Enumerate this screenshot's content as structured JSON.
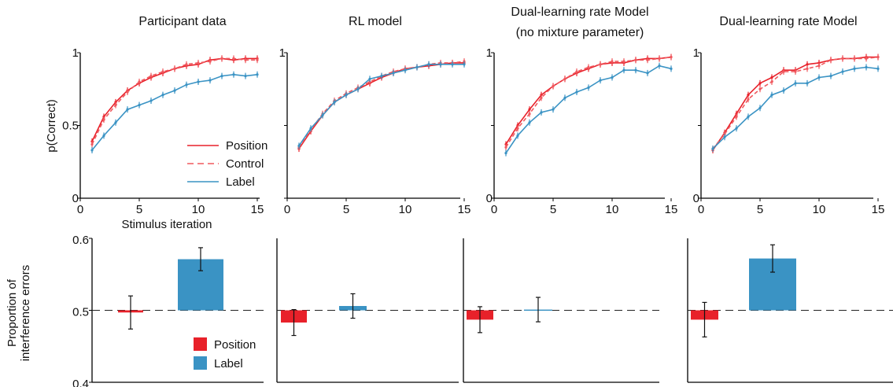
{
  "colors": {
    "position": "#e8212a",
    "control": "#f0595f",
    "label": "#3a93c4",
    "axis": "#000000"
  },
  "ylabels": {
    "top": "p(Correct)",
    "bottom": "Proportion of\ninterference errors"
  },
  "xlabel": "Stimulus iteration",
  "legend_top": [
    {
      "label": "Position",
      "style": "solid",
      "color": "#e8212a"
    },
    {
      "label": "Control",
      "style": "dashed",
      "color": "#f0595f"
    },
    {
      "label": "Label",
      "style": "solid",
      "color": "#3a93c4"
    }
  ],
  "legend_bottom": [
    {
      "label": "Position",
      "color": "#e8212a"
    },
    {
      "label": "Label",
      "color": "#3a93c4"
    }
  ],
  "panel_titles": [
    [
      "Participant data"
    ],
    [
      "RL model"
    ],
    [
      "Dual-learning rate Model",
      "(no mixture parameter)"
    ],
    [
      "Dual-learning rate Model"
    ]
  ],
  "chart_data": [
    {
      "type": "line",
      "title": "Participant data",
      "xlabel": "Stimulus iteration",
      "ylabel": "p(Correct)",
      "xlim": [
        0,
        15
      ],
      "ylim": [
        0,
        1
      ],
      "xticks": [
        0,
        5,
        10,
        15
      ],
      "yticks": [
        0,
        0.5,
        1
      ],
      "ytick_labels": [
        "0",
        "0.5",
        "1"
      ],
      "x": [
        1,
        2,
        3,
        4,
        5,
        6,
        7,
        8,
        9,
        10,
        11,
        12,
        13,
        14,
        15
      ],
      "series": [
        {
          "name": "Position",
          "style": "solid",
          "values": [
            0.39,
            0.56,
            0.66,
            0.74,
            0.79,
            0.83,
            0.86,
            0.89,
            0.91,
            0.92,
            0.95,
            0.96,
            0.95,
            0.96,
            0.96
          ]
        },
        {
          "name": "Control",
          "style": "dashed",
          "values": [
            0.37,
            0.54,
            0.64,
            0.73,
            0.8,
            0.84,
            0.87,
            0.89,
            0.92,
            0.93,
            0.94,
            0.96,
            0.96,
            0.95,
            0.95
          ]
        },
        {
          "name": "Label",
          "style": "solid",
          "values": [
            0.33,
            0.43,
            0.52,
            0.61,
            0.64,
            0.67,
            0.71,
            0.74,
            0.78,
            0.8,
            0.81,
            0.84,
            0.85,
            0.84,
            0.85
          ]
        }
      ]
    },
    {
      "type": "line",
      "title": "RL model",
      "xlim": [
        0,
        15
      ],
      "ylim": [
        0,
        1
      ],
      "xticks": [
        0,
        5,
        10,
        15
      ],
      "yticks": [
        0,
        0.5,
        1
      ],
      "ytick_labels": [
        "",
        "",
        "1"
      ],
      "x": [
        1,
        2,
        3,
        4,
        5,
        6,
        7,
        8,
        9,
        10,
        11,
        12,
        13,
        14,
        15
      ],
      "series": [
        {
          "name": "Position",
          "style": "solid",
          "values": [
            0.34,
            0.46,
            0.57,
            0.66,
            0.71,
            0.75,
            0.79,
            0.83,
            0.86,
            0.89,
            0.9,
            0.91,
            0.92,
            0.93,
            0.93
          ]
        },
        {
          "name": "Control",
          "style": "dashed",
          "values": [
            0.35,
            0.47,
            0.58,
            0.67,
            0.72,
            0.76,
            0.8,
            0.84,
            0.87,
            0.89,
            0.9,
            0.92,
            0.93,
            0.93,
            0.94
          ]
        },
        {
          "name": "Label",
          "style": "solid",
          "values": [
            0.36,
            0.48,
            0.57,
            0.66,
            0.71,
            0.75,
            0.82,
            0.84,
            0.86,
            0.88,
            0.9,
            0.92,
            0.92,
            0.92,
            0.92
          ]
        }
      ]
    },
    {
      "type": "line",
      "title": "Dual-learning rate Model (no mixture parameter)",
      "xlim": [
        0,
        15
      ],
      "ylim": [
        0,
        1
      ],
      "xticks": [
        0,
        5,
        10,
        15
      ],
      "yticks": [
        0,
        0.5,
        1
      ],
      "ytick_labels": [
        "0",
        "",
        "1"
      ],
      "x": [
        1,
        2,
        3,
        4,
        5,
        6,
        7,
        8,
        9,
        10,
        11,
        12,
        13,
        14,
        15
      ],
      "series": [
        {
          "name": "Position",
          "style": "solid",
          "values": [
            0.37,
            0.5,
            0.61,
            0.71,
            0.77,
            0.82,
            0.86,
            0.89,
            0.92,
            0.93,
            0.93,
            0.95,
            0.96,
            0.96,
            0.97
          ]
        },
        {
          "name": "Control",
          "style": "dashed",
          "values": [
            0.35,
            0.48,
            0.58,
            0.69,
            0.77,
            0.82,
            0.87,
            0.9,
            0.92,
            0.94,
            0.94,
            0.95,
            0.95,
            0.96,
            0.97
          ]
        },
        {
          "name": "Label",
          "style": "solid",
          "values": [
            0.31,
            0.43,
            0.52,
            0.59,
            0.61,
            0.69,
            0.73,
            0.76,
            0.81,
            0.83,
            0.88,
            0.88,
            0.86,
            0.91,
            0.89
          ]
        }
      ]
    },
    {
      "type": "line",
      "title": "Dual-learning rate Model",
      "xlim": [
        0,
        15
      ],
      "ylim": [
        0,
        1
      ],
      "xticks": [
        0,
        5,
        10,
        15
      ],
      "yticks": [
        0,
        0.5,
        1
      ],
      "ytick_labels": [
        "0",
        "",
        "1"
      ],
      "x": [
        1,
        2,
        3,
        4,
        5,
        6,
        7,
        8,
        9,
        10,
        11,
        12,
        13,
        14,
        15
      ],
      "series": [
        {
          "name": "Position",
          "style": "solid",
          "values": [
            0.33,
            0.45,
            0.58,
            0.71,
            0.79,
            0.83,
            0.88,
            0.88,
            0.92,
            0.93,
            0.95,
            0.96,
            0.96,
            0.97,
            0.97
          ]
        },
        {
          "name": "Control",
          "style": "dashed",
          "values": [
            0.34,
            0.44,
            0.56,
            0.68,
            0.75,
            0.8,
            0.87,
            0.87,
            0.89,
            0.91,
            0.95,
            0.96,
            0.96,
            0.96,
            0.97
          ]
        },
        {
          "name": "Label",
          "style": "solid",
          "values": [
            0.34,
            0.42,
            0.48,
            0.56,
            0.62,
            0.71,
            0.74,
            0.79,
            0.79,
            0.83,
            0.84,
            0.87,
            0.89,
            0.9,
            0.89
          ]
        }
      ]
    },
    {
      "type": "bar",
      "title": "Participant data",
      "ylabel": "Proportion of interference errors",
      "ylim": [
        0.4,
        0.6
      ],
      "yticks": [
        0.4,
        0.5,
        0.6
      ],
      "ytick_labels": [
        "0.4",
        "0.5",
        "0.6"
      ],
      "baseline": 0.5,
      "categories": [
        "Position",
        "Label"
      ],
      "values": [
        0.497,
        0.571
      ],
      "errors": [
        0.023,
        0.016
      ]
    },
    {
      "type": "bar",
      "title": "RL model",
      "ylim": [
        0.4,
        0.6
      ],
      "baseline": 0.5,
      "categories": [
        "Position",
        "Label"
      ],
      "values": [
        0.483,
        0.506
      ],
      "errors": [
        0.018,
        0.017
      ]
    },
    {
      "type": "bar",
      "title": "Dual-learning rate Model (no mixture parameter)",
      "ylim": [
        0.4,
        0.6
      ],
      "baseline": 0.5,
      "categories": [
        "Position",
        "Label"
      ],
      "values": [
        0.487,
        0.501
      ],
      "errors": [
        0.018,
        0.017
      ]
    },
    {
      "type": "bar",
      "title": "Dual-learning rate Model",
      "ylim": [
        0.4,
        0.6
      ],
      "baseline": 0.5,
      "categories": [
        "Position",
        "Label"
      ],
      "values": [
        0.487,
        0.572
      ],
      "errors": [
        0.024,
        0.019
      ]
    }
  ]
}
